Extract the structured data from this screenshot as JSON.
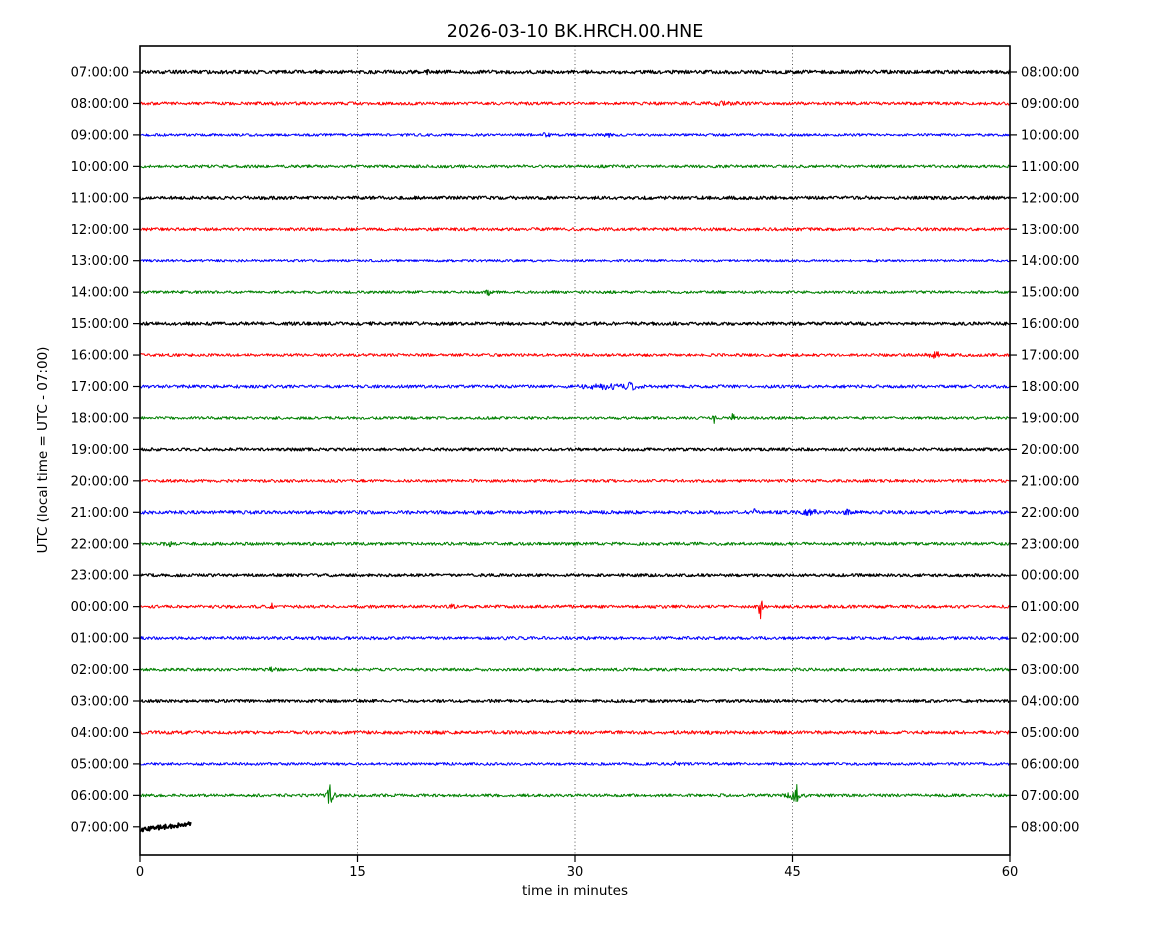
{
  "title": "2026-03-10 BK.HRCH.00.HNE",
  "xlabel": "time in minutes",
  "ylabel": "UTC (local time = UTC - 07:00)",
  "chart_data": {
    "type": "line",
    "subtype": "seismogram-helicorder-dayplot",
    "date": "2026-03-10",
    "station_id": "BK.HRCH.00.HNE",
    "title": "2026-03-10 BK.HRCH.00.HNE",
    "xlabel": "time in minutes",
    "ylabel": "UTC (local time = UTC - 07:00)",
    "utc_offset_note": "local time = UTC - 07:00",
    "xlim": [
      0,
      60
    ],
    "x_ticks": [
      0,
      15,
      30,
      45,
      60
    ],
    "x_tick_labels": [
      "0",
      "15",
      "30",
      "45",
      "60"
    ],
    "grid_x_minutes": [
      15,
      30,
      45
    ],
    "grid_style": "dotted-vertical",
    "trace_color_cycle": [
      "#000000",
      "#ff0000",
      "#0000ff",
      "#008000"
    ],
    "minutes_per_row": 60,
    "rows": [
      {
        "left": "07:00:00",
        "right": "08:00:00",
        "color": "#000000",
        "base": 1.8,
        "lw": 1.2,
        "span": [
          0,
          60
        ],
        "events": [
          {
            "t": 2.8,
            "amp": 0.8,
            "w": 0.3
          },
          {
            "t": 12.4,
            "amp": 1.4,
            "w": 0.25
          },
          {
            "t": 19.7,
            "amp": 1.6,
            "w": 0.18
          }
        ]
      },
      {
        "left": "08:00:00",
        "right": "09:00:00",
        "color": "#ff0000",
        "base": 1.6,
        "lw": 1.0,
        "span": [
          0,
          60
        ],
        "events": [
          {
            "t": 39.8,
            "amp": 1.0,
            "w": 1.5
          }
        ]
      },
      {
        "left": "09:00:00",
        "right": "10:00:00",
        "color": "#0000ff",
        "base": 1.3,
        "lw": 1.0,
        "span": [
          0,
          60
        ],
        "events": [
          {
            "t": 28.0,
            "amp": 1.4,
            "w": 0.3
          },
          {
            "t": 32.3,
            "amp": 1.5,
            "w": 0.22
          }
        ]
      },
      {
        "left": "10:00:00",
        "right": "11:00:00",
        "color": "#008000",
        "base": 1.5,
        "lw": 1.0,
        "span": [
          0,
          60
        ],
        "events": []
      },
      {
        "left": "11:00:00",
        "right": "12:00:00",
        "color": "#000000",
        "base": 1.7,
        "lw": 1.2,
        "span": [
          0,
          60
        ],
        "events": []
      },
      {
        "left": "12:00:00",
        "right": "13:00:00",
        "color": "#ff0000",
        "base": 1.6,
        "lw": 1.0,
        "span": [
          0,
          60
        ],
        "events": []
      },
      {
        "left": "13:00:00",
        "right": "14:00:00",
        "color": "#0000ff",
        "base": 1.2,
        "lw": 1.0,
        "span": [
          0,
          60
        ],
        "events": []
      },
      {
        "left": "14:00:00",
        "right": "15:00:00",
        "color": "#008000",
        "base": 1.4,
        "lw": 1.0,
        "span": [
          0,
          60
        ],
        "events": [
          {
            "t": 24.0,
            "amp": 2.6,
            "w": 0.12
          }
        ]
      },
      {
        "left": "15:00:00",
        "right": "16:00:00",
        "color": "#000000",
        "base": 1.7,
        "lw": 1.2,
        "span": [
          0,
          60
        ],
        "events": []
      },
      {
        "left": "16:00:00",
        "right": "17:00:00",
        "color": "#ff0000",
        "base": 1.5,
        "lw": 1.0,
        "span": [
          0,
          60
        ],
        "events": [
          {
            "t": 54.8,
            "amp": 2.4,
            "w": 0.5
          }
        ]
      },
      {
        "left": "17:00:00",
        "right": "18:00:00",
        "color": "#0000ff",
        "base": 1.6,
        "lw": 1.0,
        "span": [
          0,
          60
        ],
        "events": [
          {
            "t": 32.3,
            "amp": 1.6,
            "w": 1.8
          },
          {
            "t": 33.8,
            "amp": 3.2,
            "w": 0.35
          }
        ]
      },
      {
        "left": "18:00:00",
        "right": "19:00:00",
        "color": "#008000",
        "base": 1.4,
        "lw": 1.0,
        "span": [
          0,
          60
        ],
        "events": [
          {
            "t": 39.6,
            "amp": 6.5,
            "w": 0.07
          },
          {
            "t": 40.9,
            "amp": 6.5,
            "w": 0.07
          }
        ]
      },
      {
        "left": "19:00:00",
        "right": "20:00:00",
        "color": "#000000",
        "base": 1.5,
        "lw": 1.2,
        "span": [
          0,
          60
        ],
        "events": []
      },
      {
        "left": "20:00:00",
        "right": "21:00:00",
        "color": "#ff0000",
        "base": 1.5,
        "lw": 1.0,
        "span": [
          0,
          60
        ],
        "events": []
      },
      {
        "left": "21:00:00",
        "right": "22:00:00",
        "color": "#0000ff",
        "base": 1.8,
        "lw": 1.0,
        "span": [
          0,
          60
        ],
        "events": [
          {
            "t": 42.4,
            "amp": 2.4,
            "w": 0.1
          },
          {
            "t": 46.3,
            "amp": 2.0,
            "w": 0.6
          },
          {
            "t": 48.7,
            "amp": 1.6,
            "w": 0.25
          }
        ]
      },
      {
        "left": "22:00:00",
        "right": "23:00:00",
        "color": "#008000",
        "base": 1.6,
        "lw": 1.0,
        "span": [
          0,
          60
        ],
        "events": [
          {
            "t": 1.9,
            "amp": 3.2,
            "w": 0.2
          }
        ]
      },
      {
        "left": "23:00:00",
        "right": "00:00:00",
        "color": "#000000",
        "base": 1.5,
        "lw": 1.2,
        "span": [
          0,
          60
        ],
        "events": []
      },
      {
        "left": "00:00:00",
        "right": "01:00:00",
        "color": "#ff0000",
        "base": 1.6,
        "lw": 1.0,
        "span": [
          0,
          60
        ],
        "events": [
          {
            "t": 9.1,
            "amp": 2.2,
            "w": 0.12
          },
          {
            "t": 21.5,
            "amp": 1.3,
            "w": 0.2
          },
          {
            "t": 42.8,
            "amp": 11.0,
            "w": 0.15
          }
        ]
      },
      {
        "left": "01:00:00",
        "right": "02:00:00",
        "color": "#0000ff",
        "base": 1.6,
        "lw": 1.0,
        "span": [
          0,
          60
        ],
        "events": []
      },
      {
        "left": "02:00:00",
        "right": "03:00:00",
        "color": "#008000",
        "base": 1.5,
        "lw": 1.0,
        "span": [
          0,
          60
        ],
        "events": [
          {
            "t": 9.1,
            "amp": 3.2,
            "w": 0.18
          }
        ]
      },
      {
        "left": "03:00:00",
        "right": "04:00:00",
        "color": "#000000",
        "base": 1.5,
        "lw": 1.2,
        "span": [
          0,
          60
        ],
        "events": []
      },
      {
        "left": "04:00:00",
        "right": "05:00:00",
        "color": "#ff0000",
        "base": 1.8,
        "lw": 1.0,
        "span": [
          0,
          60
        ],
        "events": []
      },
      {
        "left": "05:00:00",
        "right": "06:00:00",
        "color": "#0000ff",
        "base": 1.4,
        "lw": 1.0,
        "span": [
          0,
          60
        ],
        "events": [
          {
            "t": 37.0,
            "amp": 1.4,
            "w": 0.3
          }
        ]
      },
      {
        "left": "06:00:00",
        "right": "07:00:00",
        "color": "#008000",
        "base": 1.5,
        "lw": 1.0,
        "span": [
          0,
          60
        ],
        "events": [
          {
            "t": 13.1,
            "amp": 9.5,
            "w": 0.12
          },
          {
            "t": 13.1,
            "amp": 3.0,
            "w": 0.4
          },
          {
            "t": 45.2,
            "amp": 11.5,
            "w": 0.15
          },
          {
            "t": 45.2,
            "amp": 4.0,
            "w": 0.55
          }
        ]
      },
      {
        "left": "07:00:00",
        "right": "08:00:00",
        "color": "#000000",
        "base": 2.2,
        "lw": 2.0,
        "span": [
          0,
          3.5
        ],
        "drift": [
          3,
          -3
        ],
        "events": []
      }
    ]
  }
}
